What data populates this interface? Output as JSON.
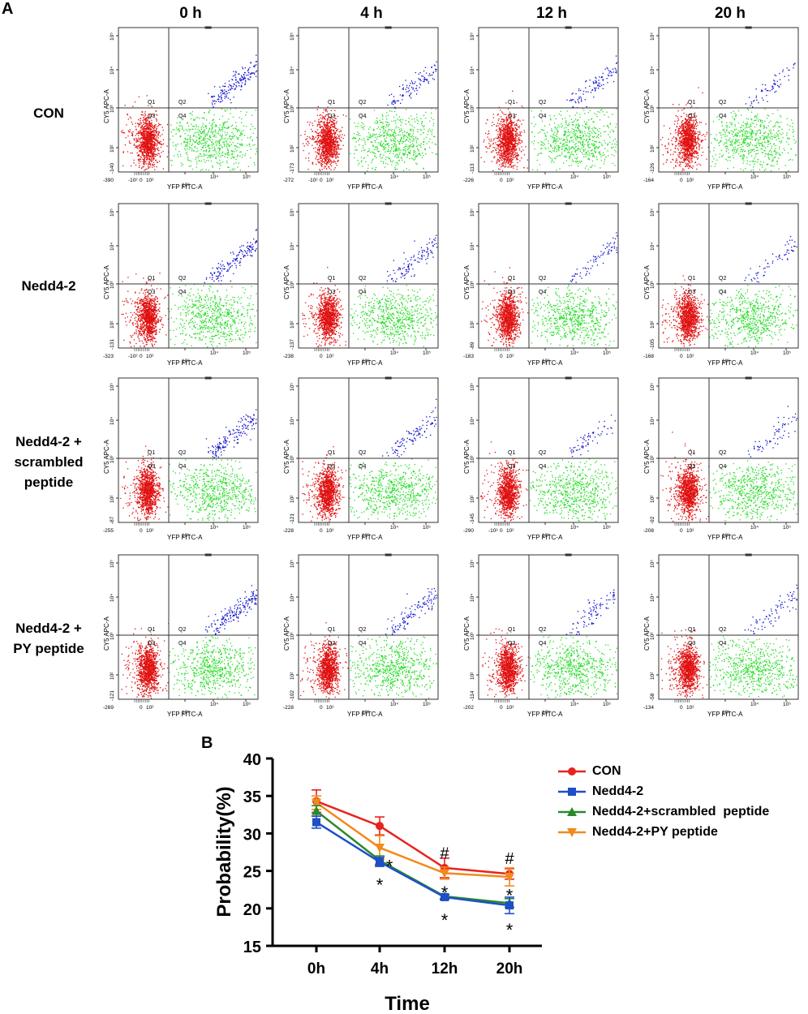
{
  "panels": {
    "a": "A",
    "b": "B"
  },
  "columns": [
    "0 h",
    "4 h",
    "12 h",
    "20 h"
  ],
  "row_labels": [
    [
      "CON"
    ],
    [
      "Nedd4-2"
    ],
    [
      "Nedd4-2 +",
      "scrambled",
      "peptide"
    ],
    [
      "Nedd4-2 +",
      "PY peptide"
    ]
  ],
  "flow": {
    "x_label": "YFP FITC-A",
    "y_label": "CY5 APC-A",
    "quadrants": [
      "Q1",
      "Q2",
      "Q3",
      "Q4"
    ],
    "x_ticks": [
      "10³",
      "10⁴",
      "10⁵"
    ],
    "y_ticks": [
      "10²",
      "10³",
      "10⁴",
      "10⁵"
    ],
    "colors": {
      "q2": "#1010d0",
      "q3": "#e01010",
      "q4": "#22dd22"
    },
    "grid": [
      [
        {
          "x_min": "-390",
          "x_neg": "-10²",
          "x_zero": "0",
          "x_low": "10²",
          "y_min": "-140",
          "q2": 0.85
        },
        {
          "x_min": "-272",
          "x_neg": "-10²",
          "x_zero": "0",
          "x_low": "10²",
          "y_min": "-173",
          "q2": 0.55
        },
        {
          "x_min": "-226",
          "x_neg": "",
          "x_zero": "0",
          "x_low": "10²",
          "y_min": "-113",
          "q2": 0.45
        },
        {
          "x_min": "-164",
          "x_neg": "",
          "x_zero": "0",
          "x_low": "10²",
          "y_min": "-126",
          "q2": 0.35
        }
      ],
      [
        {
          "x_min": "-323",
          "x_neg": "-10²",
          "x_zero": "0",
          "x_low": "10²",
          "y_min": "-131",
          "q2": 0.8
        },
        {
          "x_min": "-238",
          "x_neg": "",
          "x_zero": "0",
          "x_low": "10²",
          "y_min": "-137",
          "q2": 0.5
        },
        {
          "x_min": "-183",
          "x_neg": "",
          "x_zero": "0",
          "x_low": "10²",
          "y_min": "-89",
          "q2": 0.35
        },
        {
          "x_min": "-168",
          "x_neg": "",
          "x_zero": "0",
          "x_low": "10²",
          "y_min": "-105",
          "q2": 0.3
        }
      ],
      [
        {
          "x_min": "-255",
          "x_neg": "",
          "x_zero": "0",
          "x_low": "10²",
          "y_min": "-87",
          "q2": 0.8
        },
        {
          "x_min": "-228",
          "x_neg": "",
          "x_zero": "0",
          "x_low": "10²",
          "y_min": "-121",
          "q2": 0.5
        },
        {
          "x_min": "-290",
          "x_neg": "-10²",
          "x_zero": "0",
          "x_low": "10²",
          "y_min": "-145",
          "q2": 0.35
        },
        {
          "x_min": "-208",
          "x_neg": "",
          "x_zero": "0",
          "x_low": "10²",
          "y_min": "-92",
          "q2": 0.3
        }
      ],
      [
        {
          "x_min": "-269",
          "x_neg": "",
          "x_zero": "0",
          "x_low": "10²",
          "y_min": "-121",
          "q2": 0.85
        },
        {
          "x_min": "-228",
          "x_neg": "",
          "x_zero": "0",
          "x_low": "10²",
          "y_min": "-102",
          "q2": 0.6
        },
        {
          "x_min": "-202",
          "x_neg": "",
          "x_zero": "0",
          "x_low": "10²",
          "y_min": "-114",
          "q2": 0.45
        },
        {
          "x_min": "-134",
          "x_neg": "",
          "x_zero": "0",
          "x_low": "10²",
          "y_min": "-58",
          "q2": 0.35
        }
      ]
    ]
  },
  "chart_data": {
    "type": "line",
    "title": "",
    "xlabel": "Time",
    "ylabel": "Probability(%)",
    "categories": [
      "0h",
      "4h",
      "12h",
      "20h"
    ],
    "ylim": [
      15,
      40
    ],
    "yticks": [
      "15",
      "20",
      "25",
      "30",
      "35",
      "40"
    ],
    "series": [
      {
        "name": "CON",
        "color": "#e8231e",
        "marker": "circle",
        "values": [
          34.3,
          31.0,
          25.4,
          24.6
        ],
        "errors": [
          1.5,
          1.2,
          1.3,
          0.7
        ]
      },
      {
        "name": "Nedd4-2",
        "color": "#1f4fc8",
        "marker": "square",
        "values": [
          31.5,
          26.2,
          21.5,
          20.4
        ],
        "errors": [
          0.8,
          0.6,
          0.3,
          1.1
        ]
      },
      {
        "name": "Nedd4-2+scrambled  peptide",
        "color": "#2a8a2a",
        "marker": "triangle-up",
        "values": [
          33.0,
          26.4,
          21.6,
          20.7
        ],
        "errors": [
          0.7,
          0.6,
          0.3,
          0.6
        ]
      },
      {
        "name": "Nedd4-2+PY peptide",
        "color": "#f28a1c",
        "marker": "triangle-down",
        "values": [
          34.1,
          28.1,
          24.7,
          24.2
        ],
        "errors": [
          0.9,
          1.6,
          0.8,
          1.2
        ]
      }
    ],
    "annotations": [
      {
        "text": "*",
        "x": "4h",
        "y": 23.6
      },
      {
        "text": "*",
        "x": "4h",
        "y": 26.1,
        "offset": "right"
      },
      {
        "text": "*",
        "x": "12h",
        "y": 22.6
      },
      {
        "text": "*",
        "x": "12h",
        "y": 18.9
      },
      {
        "text": "#",
        "x": "12h",
        "y": 27.5
      },
      {
        "text": "*",
        "x": "20h",
        "y": 22.2
      },
      {
        "text": "*",
        "x": "20h",
        "y": 17.6
      },
      {
        "text": "#",
        "x": "20h",
        "y": 26.8
      }
    ]
  }
}
